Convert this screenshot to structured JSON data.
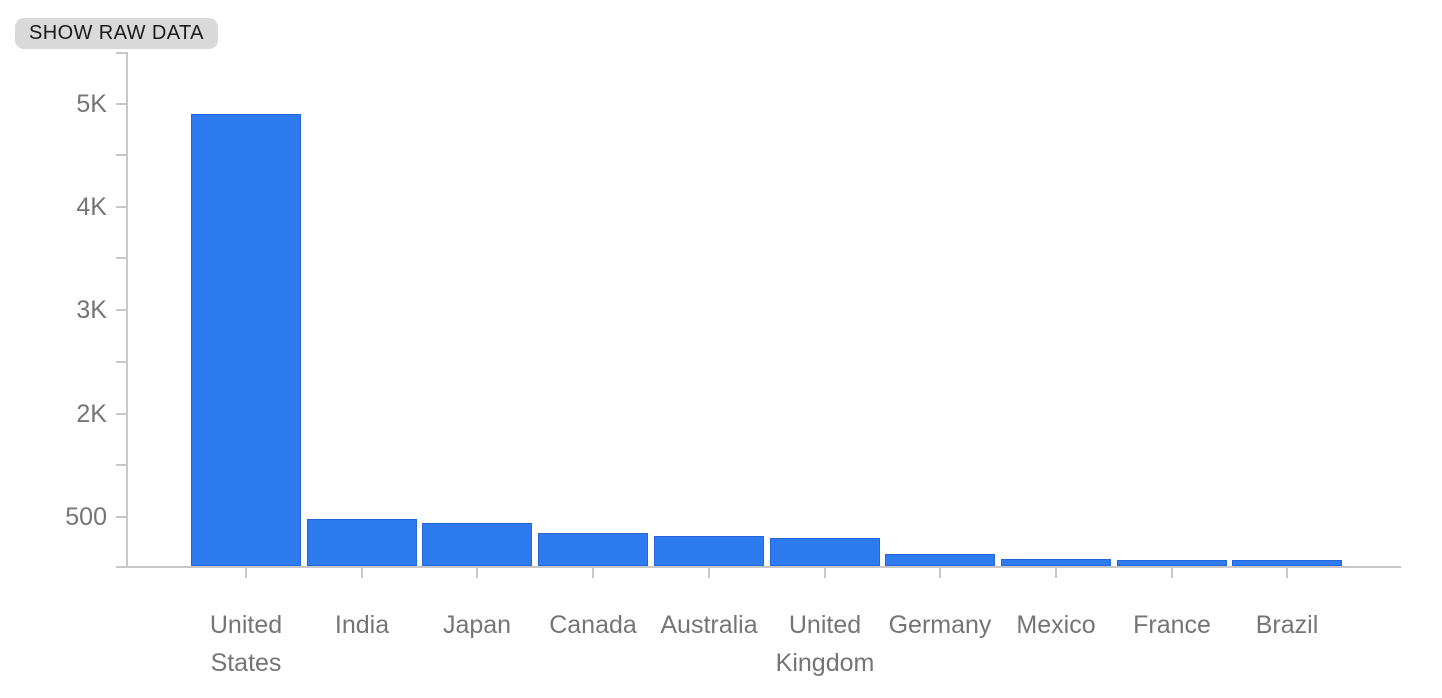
{
  "toolbar": {
    "show_raw_data_label": "SHOW RAW DATA"
  },
  "colors": {
    "bar_fill": "#2E7BEF",
    "bar_border": "#2467DC",
    "axis_line": "#C8C8C8",
    "axis_label_text": "#757575",
    "button_bg": "#D9D9D9",
    "button_text": "#1A1A1A"
  },
  "chart_data": {
    "type": "bar",
    "title": "",
    "xlabel": "",
    "ylabel": "",
    "legend": "none",
    "grid": false,
    "categories": [
      "United States",
      "India",
      "Japan",
      "Canada",
      "Australia",
      "United Kingdom",
      "Germany",
      "Mexico",
      "France",
      "Brazil"
    ],
    "category_label_lines": [
      [
        "United",
        "States"
      ],
      [
        "India"
      ],
      [
        "Japan"
      ],
      [
        "Canada"
      ],
      [
        "Australia"
      ],
      [
        "United",
        "Kingdom"
      ],
      [
        "Germany"
      ],
      [
        "Mexico"
      ],
      [
        "France"
      ],
      [
        "Brazil"
      ]
    ],
    "values": [
      4900,
      480,
      440,
      340,
      310,
      290,
      140,
      90,
      80,
      80
    ],
    "y_axis": {
      "tick_labels": [
        "5K",
        "4K",
        "3K",
        "2K",
        "500"
      ],
      "tick_values": [
        5000,
        4000,
        3000,
        2000,
        500
      ],
      "baseline_value": 0,
      "minor_ticks_between_majors": true
    }
  }
}
